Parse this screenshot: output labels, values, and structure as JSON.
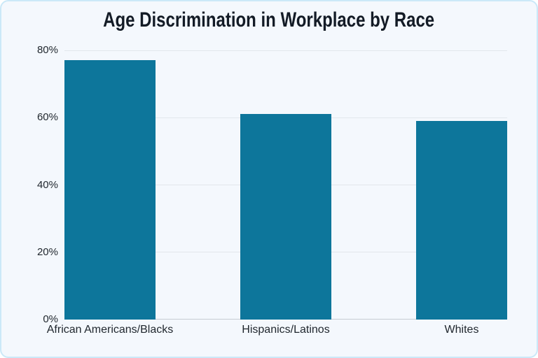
{
  "chart_data": {
    "type": "bar",
    "title": "Age Discrimination in Workplace by Race",
    "categories": [
      "African Americans/Blacks",
      "Hispanics/Latinos",
      "Whites"
    ],
    "values": [
      77,
      61,
      59
    ],
    "unit": "%",
    "xlabel": "",
    "ylabel": "",
    "ylim": [
      0,
      80
    ],
    "ytick_values": [
      0,
      20,
      40,
      60,
      80
    ],
    "ytick_labels": [
      "0%",
      "20%",
      "40%",
      "60%",
      "80%"
    ],
    "grid": true,
    "legend": false,
    "colors": {
      "bar": "#0d769b",
      "background": "#f4f8fd",
      "card_border": "#cbe9f8",
      "gridline": "#e2e7ec",
      "axis_line": "#c6ccd3",
      "title_text": "#131b26",
      "label_text": "#1f262d"
    }
  }
}
